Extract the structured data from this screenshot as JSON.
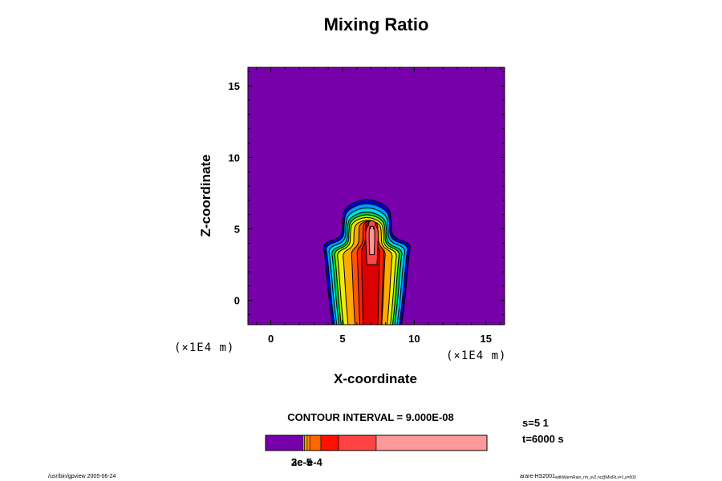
{
  "chart_data": {
    "type": "contour",
    "title": "Mixing Ratio",
    "xlabel": "X-coordinate",
    "ylabel": "Z-coordinate",
    "x_unit": "(×1E4 m)",
    "y_unit": "(×1E4 m)",
    "xlim": [
      -1.6,
      16.3
    ],
    "ylim": [
      -1.7,
      16.3
    ],
    "xticks": [
      0,
      5,
      10,
      15
    ],
    "yticks": [
      0,
      5,
      10,
      15
    ],
    "grid": false,
    "contour_interval": "CONTOUR INTERVAL = 9.000E-08",
    "colors": [
      "#7700aa",
      "#0000cc",
      "#0099ff",
      "#00dddd",
      "#00cc55",
      "#99ee00",
      "#eeee00",
      "#ffaa00",
      "#ff5500",
      "#ff2200",
      "#dd0000",
      "#ff4444",
      "#ff9999"
    ],
    "levels": [
      {
        "x": [
          3.6,
          9.8
        ],
        "z": [
          -1.7,
          7.2
        ]
      },
      {
        "x": [
          3.8,
          9.6
        ],
        "z": [
          -1.7,
          6.9
        ]
      },
      {
        "x": [
          4.0,
          9.4
        ],
        "z": [
          -1.7,
          6.6
        ]
      },
      {
        "x": [
          4.2,
          9.2
        ],
        "z": [
          -1.7,
          6.3
        ]
      },
      {
        "x": [
          4.4,
          9.0
        ],
        "z": [
          -1.7,
          6.1
        ]
      },
      {
        "x": [
          4.6,
          8.8
        ],
        "z": [
          -1.7,
          5.9
        ]
      },
      {
        "x": [
          5.0,
          8.5
        ],
        "z": [
          -1.7,
          5.7
        ]
      },
      {
        "x": [
          5.6,
          8.0
        ],
        "z": [
          -1.7,
          5.6
        ]
      },
      {
        "x": [
          6.0,
          7.9
        ],
        "z": [
          -1.7,
          5.6
        ]
      },
      {
        "x": [
          6.3,
          7.6
        ],
        "z": [
          -1.7,
          5.5
        ]
      },
      {
        "x": [
          6.6,
          7.5
        ],
        "z": [
          2.5,
          5.6
        ]
      },
      {
        "x": [
          6.85,
          7.25
        ],
        "z": [
          3.2,
          5.2
        ]
      }
    ]
  },
  "colorbar": {
    "labels": [
      "3e-5",
      "2e-5",
      "e-4"
    ],
    "segments": [
      {
        "color": "#7700aa",
        "frac": 0.17
      },
      {
        "color": "#ffdd00",
        "frac": 0.006
      },
      {
        "color": "#ffaa00",
        "frac": 0.012
      },
      {
        "color": "#ff8800",
        "frac": 0.012
      },
      {
        "color": "#ff6600",
        "frac": 0.05
      },
      {
        "color": "#ff1100",
        "frac": 0.08
      },
      {
        "color": "#ff4444",
        "frac": 0.17
      },
      {
        "color": "#ff9999",
        "frac": 0.5
      }
    ]
  },
  "info": {
    "s_line": "s=5 1",
    "t_line": "t=6000 s"
  },
  "footer": {
    "left": "/usr/bin/gpview 2005-06-24",
    "right_main": "arare-HS2001",
    "right_sub": "withWarmRain_rm_sv2.nc@MixRt,x=1,y=500"
  }
}
